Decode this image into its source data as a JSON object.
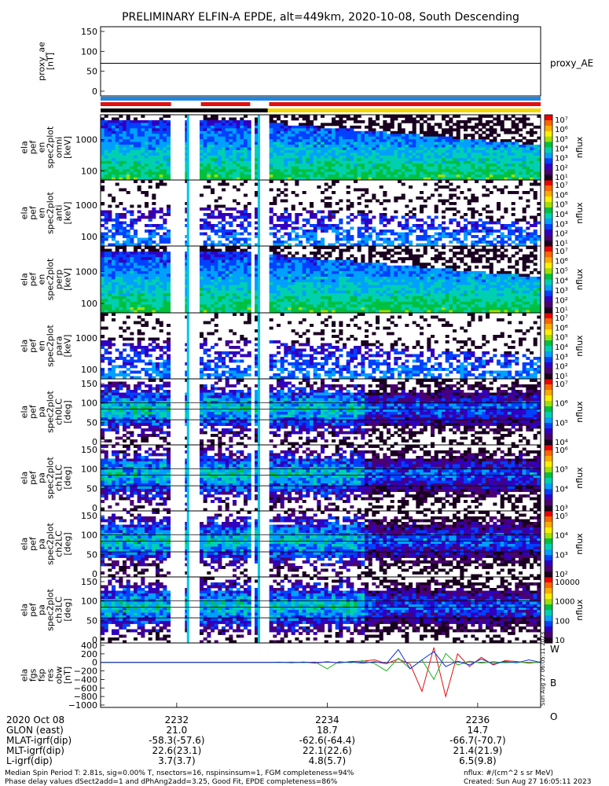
{
  "title": "PRELIMINARY ELFIN-A EPDE, alt=449km, 2020-10-08, South Descending",
  "colors": {
    "bar_blue": "#1e88e5",
    "bar_red": "#e01010",
    "bar_black": "#000000",
    "bar_yellow": "#f2d600",
    "trace_w": "#e01010",
    "trace_b": "#20b020",
    "trace_o": "#1030e0",
    "spec_fill": "#ffffff",
    "colorbar_segments": [
      "#ffffff",
      "#ee0000",
      "#ff6600",
      "#ffaa00",
      "#ffee00",
      "#a0e000",
      "#00c040",
      "#00d0b0",
      "#00a0ff",
      "#0040ff",
      "#3000c0",
      "#4a0070",
      "#1a0020"
    ]
  },
  "x_axis": {
    "ticks": [
      "2232",
      "2234",
      "2236"
    ],
    "row_labels": [
      "2020 Oct 08",
      "GLON (east)",
      "MLAT-igrf(dip)",
      "MLT-igrf(dip)",
      "L-igrf(dip)"
    ],
    "columns": [
      {
        "vals": [
          "",
          "21.0",
          "-58.3(-57.6)",
          "22.6(23.1)",
          "3.7(3.7)"
        ]
      },
      {
        "vals": [
          "",
          "18.7",
          "-62.6(-64.4)",
          "22.1(22.6)",
          "4.8(5.7)"
        ]
      },
      {
        "vals": [
          "",
          "14.7",
          "-66.7(-70.7)",
          "21.4(21.9)",
          "6.5(9.8)"
        ]
      }
    ]
  },
  "footer": {
    "line1": "Median Spin Period T: 2.81s, sig=0.00% T, nsectors=16, nspinsinsum=1, FGM completeness=94%",
    "line2": "Phase delay values dSect2add=1 and dPhAng2add=3.25, Good Fit, EPDE completeness=86%",
    "right1": "nflux: #/(cm^2 s sr MeV)",
    "right2": "Created: Sun Aug 27 16:05:11 2023",
    "side_stamp": "Sun Aug 27 06:05:11 2023"
  },
  "chart_data": [
    {
      "type": "line",
      "panel": "proxy_ae",
      "ylabel_lines": [
        "proxy_ae",
        "[nT]"
      ],
      "yticks": [
        "150",
        "100",
        "50",
        "0"
      ],
      "ylim": [
        0,
        150
      ],
      "series": [
        {
          "name": "proxy_AE",
          "values": [
            70,
            70
          ]
        }
      ],
      "legend": "proxy_AE"
    },
    {
      "type": "heatmap",
      "panel": "spec_omni",
      "ylabel_lines": [
        "ela",
        "pef",
        "en",
        "spec2plot",
        "omni",
        "[keV]"
      ],
      "yticks": [
        "1000",
        "100"
      ],
      "zlabel": "nflux",
      "zticks": [
        "10⁷",
        "10⁶",
        "10⁵",
        "10⁴",
        "10³",
        "10²",
        "10¹"
      ]
    },
    {
      "type": "heatmap",
      "panel": "spec_anti",
      "ylabel_lines": [
        "ela",
        "pef",
        "en",
        "spec2plot",
        "anti",
        "[keV]"
      ],
      "yticks": [
        "1000",
        "100"
      ],
      "zlabel": "nflux",
      "zticks": [
        "10⁷",
        "10⁶",
        "10⁵",
        "10⁴",
        "10³",
        "10²",
        "10¹"
      ]
    },
    {
      "type": "heatmap",
      "panel": "spec_perp",
      "ylabel_lines": [
        "ela",
        "pef",
        "en",
        "spec2plot",
        "perp",
        "[keV]"
      ],
      "yticks": [
        "1000",
        "100"
      ],
      "zlabel": "nflux",
      "zticks": [
        "10⁷",
        "10⁶",
        "10⁵",
        "10⁴",
        "10³",
        "10²",
        "10¹"
      ]
    },
    {
      "type": "heatmap",
      "panel": "spec_para",
      "ylabel_lines": [
        "ela",
        "pef",
        "en",
        "spec2plot",
        "para",
        "[keV]"
      ],
      "yticks": [
        "1000",
        "100"
      ],
      "zlabel": "nflux",
      "zticks": [
        "10⁷",
        "10⁶",
        "10⁵",
        "10⁴",
        "10³",
        "10²",
        "10¹"
      ]
    },
    {
      "type": "heatmap",
      "panel": "pa_ch0",
      "ylabel_lines": [
        "ela",
        "pef",
        "pa",
        "spec2plot",
        "ch0LC",
        "[deg]"
      ],
      "yticks": [
        "150",
        "100",
        "50",
        "0"
      ],
      "ylim": [
        0,
        180
      ],
      "zlabel": "nflux",
      "zticks": [
        "10⁷",
        "10⁶",
        "10⁵",
        "10⁴"
      ]
    },
    {
      "type": "heatmap",
      "panel": "pa_ch1",
      "ylabel_lines": [
        "ela",
        "pef",
        "pa",
        "spec2plot",
        "ch1LC",
        "[deg]"
      ],
      "yticks": [
        "150",
        "100",
        "50",
        "0"
      ],
      "ylim": [
        0,
        180
      ],
      "zlabel": "nflux",
      "zticks": [
        "10⁶",
        "10⁵",
        "10⁴",
        "10³"
      ]
    },
    {
      "type": "heatmap",
      "panel": "pa_ch2",
      "ylabel_lines": [
        "ela",
        "pef",
        "pa",
        "spec2plot",
        "ch2LC",
        "[deg]"
      ],
      "yticks": [
        "150",
        "100",
        "50",
        "0"
      ],
      "ylim": [
        0,
        180
      ],
      "zlabel": "nflux",
      "zticks": [
        "10⁵",
        "10⁴",
        "10³",
        "10²"
      ]
    },
    {
      "type": "heatmap",
      "panel": "pa_ch3",
      "ylabel_lines": [
        "ela",
        "pef",
        "pa",
        "spec2plot",
        "ch3LC",
        "[deg]"
      ],
      "yticks": [
        "150",
        "100",
        "50",
        "0"
      ],
      "ylim": [
        0,
        180
      ],
      "zlabel": "nflux",
      "zticks": [
        "10000",
        "1000",
        "100",
        "10"
      ]
    },
    {
      "type": "line",
      "panel": "fgs",
      "ylabel_lines": [
        "ela",
        "fgs",
        "fsp",
        "res",
        "obw",
        "[nT]"
      ],
      "yticks": [
        "400",
        "200",
        "0",
        "−200",
        "−400",
        "−600",
        "−800",
        "−1000"
      ],
      "ylim": [
        -1000,
        400
      ],
      "series": [
        {
          "name": "W",
          "values": [
            0,
            5,
            -10,
            10,
            -20,
            15,
            -15,
            20,
            30,
            60,
            -30,
            80,
            -40,
            -680,
            350,
            -800,
            200,
            -100,
            120,
            -60,
            40,
            20,
            -20,
            10
          ]
        },
        {
          "name": "B",
          "values": [
            0,
            -5,
            8,
            -8,
            10,
            -150,
            20,
            -10,
            40,
            -30,
            -200,
            100,
            -150,
            60,
            -400,
            210,
            -60,
            30,
            -20,
            15,
            -10,
            5,
            0,
            -5
          ]
        },
        {
          "name": "O",
          "values": [
            0,
            4,
            -6,
            5,
            -4,
            8,
            -10,
            12,
            -20,
            15,
            -30,
            300,
            -150,
            60,
            250,
            -100,
            30,
            -60,
            80,
            -40,
            20,
            -10,
            60,
            0
          ]
        }
      ]
    }
  ]
}
